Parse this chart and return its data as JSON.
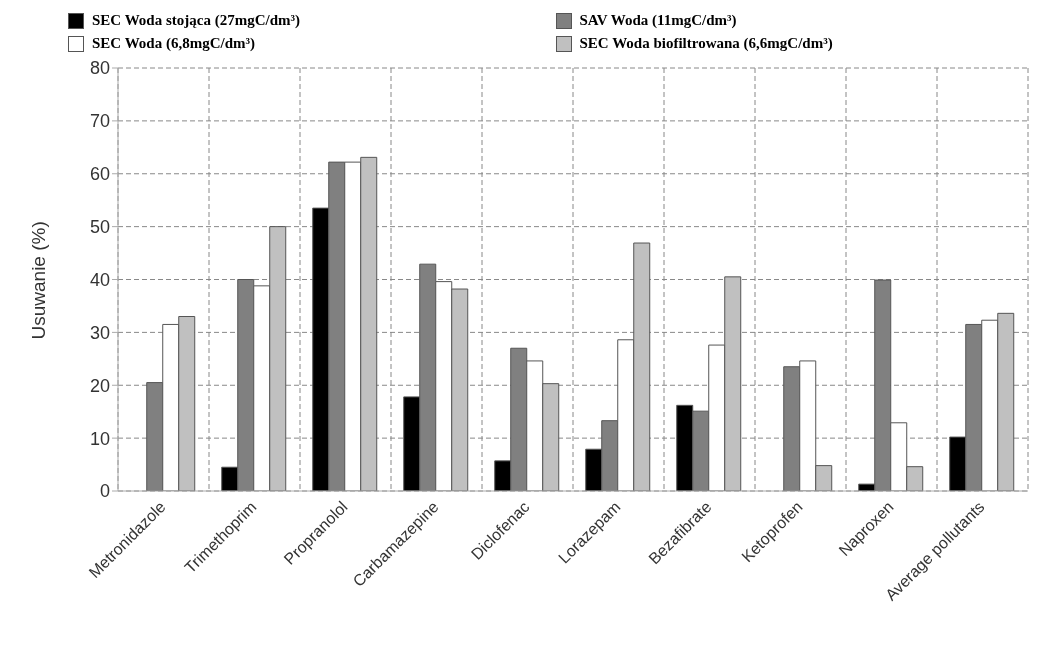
{
  "chart_data": {
    "type": "bar",
    "ylabel": "Usuwanie (%)",
    "categories": [
      "Metronidazole",
      "Trimethoprim",
      "Propranolol",
      "Carbamazepine",
      "Diclofenac",
      "Lorazepam",
      "Bezafibrate",
      "Ketoprofen",
      "Naproxen",
      "Average pollutants"
    ],
    "series": [
      {
        "name": "SEC Woda stojąca (27mgC/dm³)",
        "color": "#000000",
        "values": [
          null,
          4.5,
          53.5,
          17.8,
          5.7,
          7.9,
          16.2,
          null,
          1.3,
          10.2
        ]
      },
      {
        "name": "SAV Woda (11mgC/dm³)",
        "color": "#808080",
        "values": [
          20.5,
          40,
          62.2,
          42.9,
          27,
          13.3,
          15.1,
          23.5,
          39.9,
          31.5
        ]
      },
      {
        "name": "SEC Woda (6,8mgC/dm³)",
        "color": "#ffffff",
        "values": [
          31.5,
          38.8,
          62.2,
          39.6,
          24.6,
          28.6,
          27.6,
          24.6,
          12.9,
          32.3
        ]
      },
      {
        "name": "SEC Woda biofiltrowana (6,6mgC/dm³)",
        "color": "#c0c0c0",
        "values": [
          33,
          50,
          63.1,
          38.2,
          20.3,
          46.9,
          40.5,
          4.8,
          4.6,
          33.6
        ]
      }
    ],
    "ylim": [
      0,
      80
    ],
    "yticks": [
      0,
      10,
      20,
      30,
      40,
      50,
      60,
      70,
      80
    ],
    "grid": true,
    "legend": "top"
  }
}
